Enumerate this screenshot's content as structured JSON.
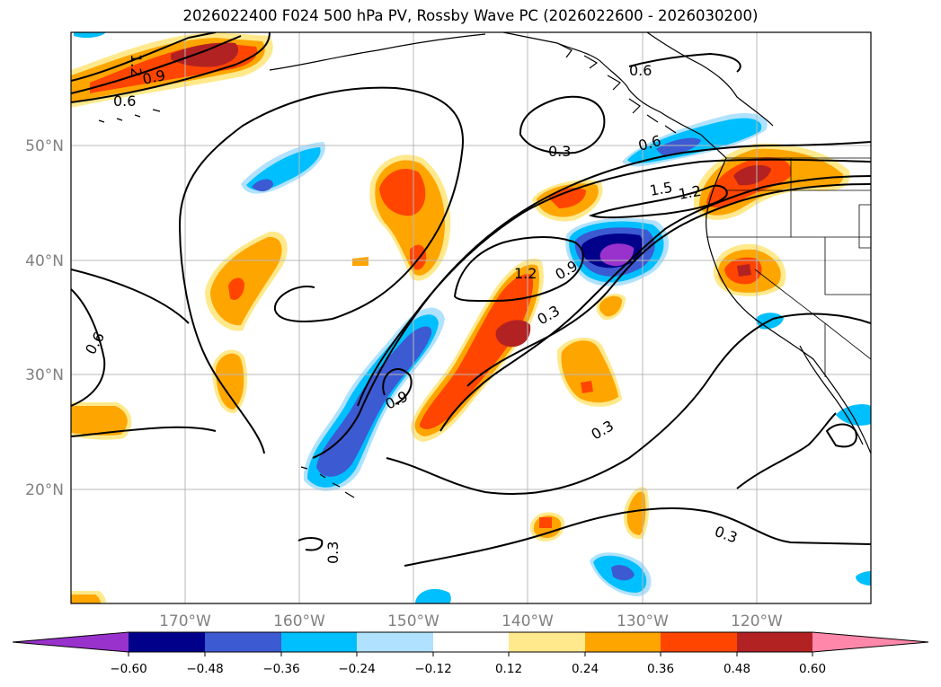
{
  "title": "2026022400 F024 500 hPa PV, Rossby Wave PC (2026022600 - 2026030200)",
  "map": {
    "latitude_labels": [
      "50°N",
      "40°N",
      "30°N",
      "20°N"
    ],
    "longitude_labels": [
      "170°W",
      "160°W",
      "150°W",
      "140°W",
      "130°W",
      "120°W"
    ],
    "contour_labels": [
      "0.9",
      "0.6",
      "0.6",
      "0.3",
      "0.6",
      "1.5",
      "1.2",
      "1.2",
      "0.9",
      "0.3",
      "0.9",
      "0.3",
      "0.3",
      "0.3",
      "0.6",
      "1.2"
    ]
  },
  "colorbar": {
    "tick_labels": [
      "−0.60",
      "−0.48",
      "−0.36",
      "−0.24",
      "−0.12",
      "0.12",
      "0.24",
      "0.36",
      "0.48",
      "0.60"
    ],
    "colors": [
      "#9932cc",
      "#00008b",
      "#3c5ad2",
      "#00bfff",
      "#b0e2ff",
      "#ffffff",
      "#ffe98c",
      "#ffa500",
      "#ff4500",
      "#b22222",
      "#ff88aa"
    ]
  }
}
